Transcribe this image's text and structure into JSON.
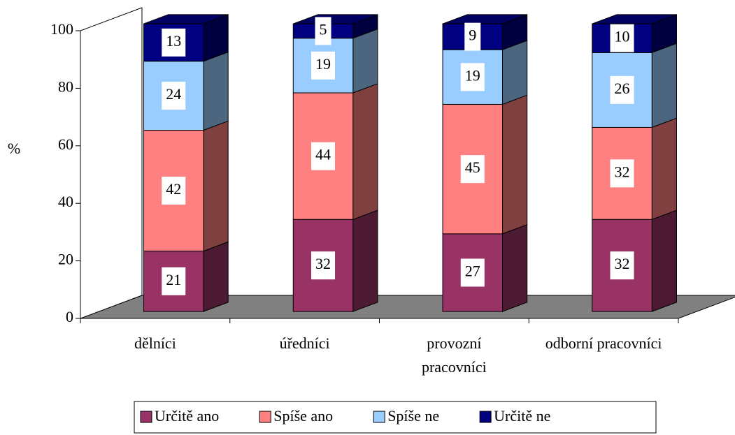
{
  "chart_data": {
    "type": "bar",
    "stacked": true,
    "three_d": true,
    "ylabel": "%",
    "categories": [
      "dělníci",
      "úředníci",
      "provozní\npracovníci",
      "odborní pracovníci"
    ],
    "series": [
      {
        "name": "Určitě ano",
        "color": "#993366",
        "values": [
          21,
          32,
          27,
          32
        ]
      },
      {
        "name": "Spíše ano",
        "color": "#ff8080",
        "values": [
          42,
          44,
          45,
          32
        ]
      },
      {
        "name": "Spíše ne",
        "color": "#99ccff",
        "values": [
          24,
          19,
          19,
          26
        ]
      },
      {
        "name": "Určitě ne",
        "color": "#000080",
        "values": [
          13,
          5,
          9,
          10
        ]
      }
    ],
    "ylim": [
      0,
      100
    ],
    "yticks": [
      0,
      20,
      40,
      60,
      80,
      100
    ],
    "legend": "bottom",
    "floor_color": "#808080"
  }
}
